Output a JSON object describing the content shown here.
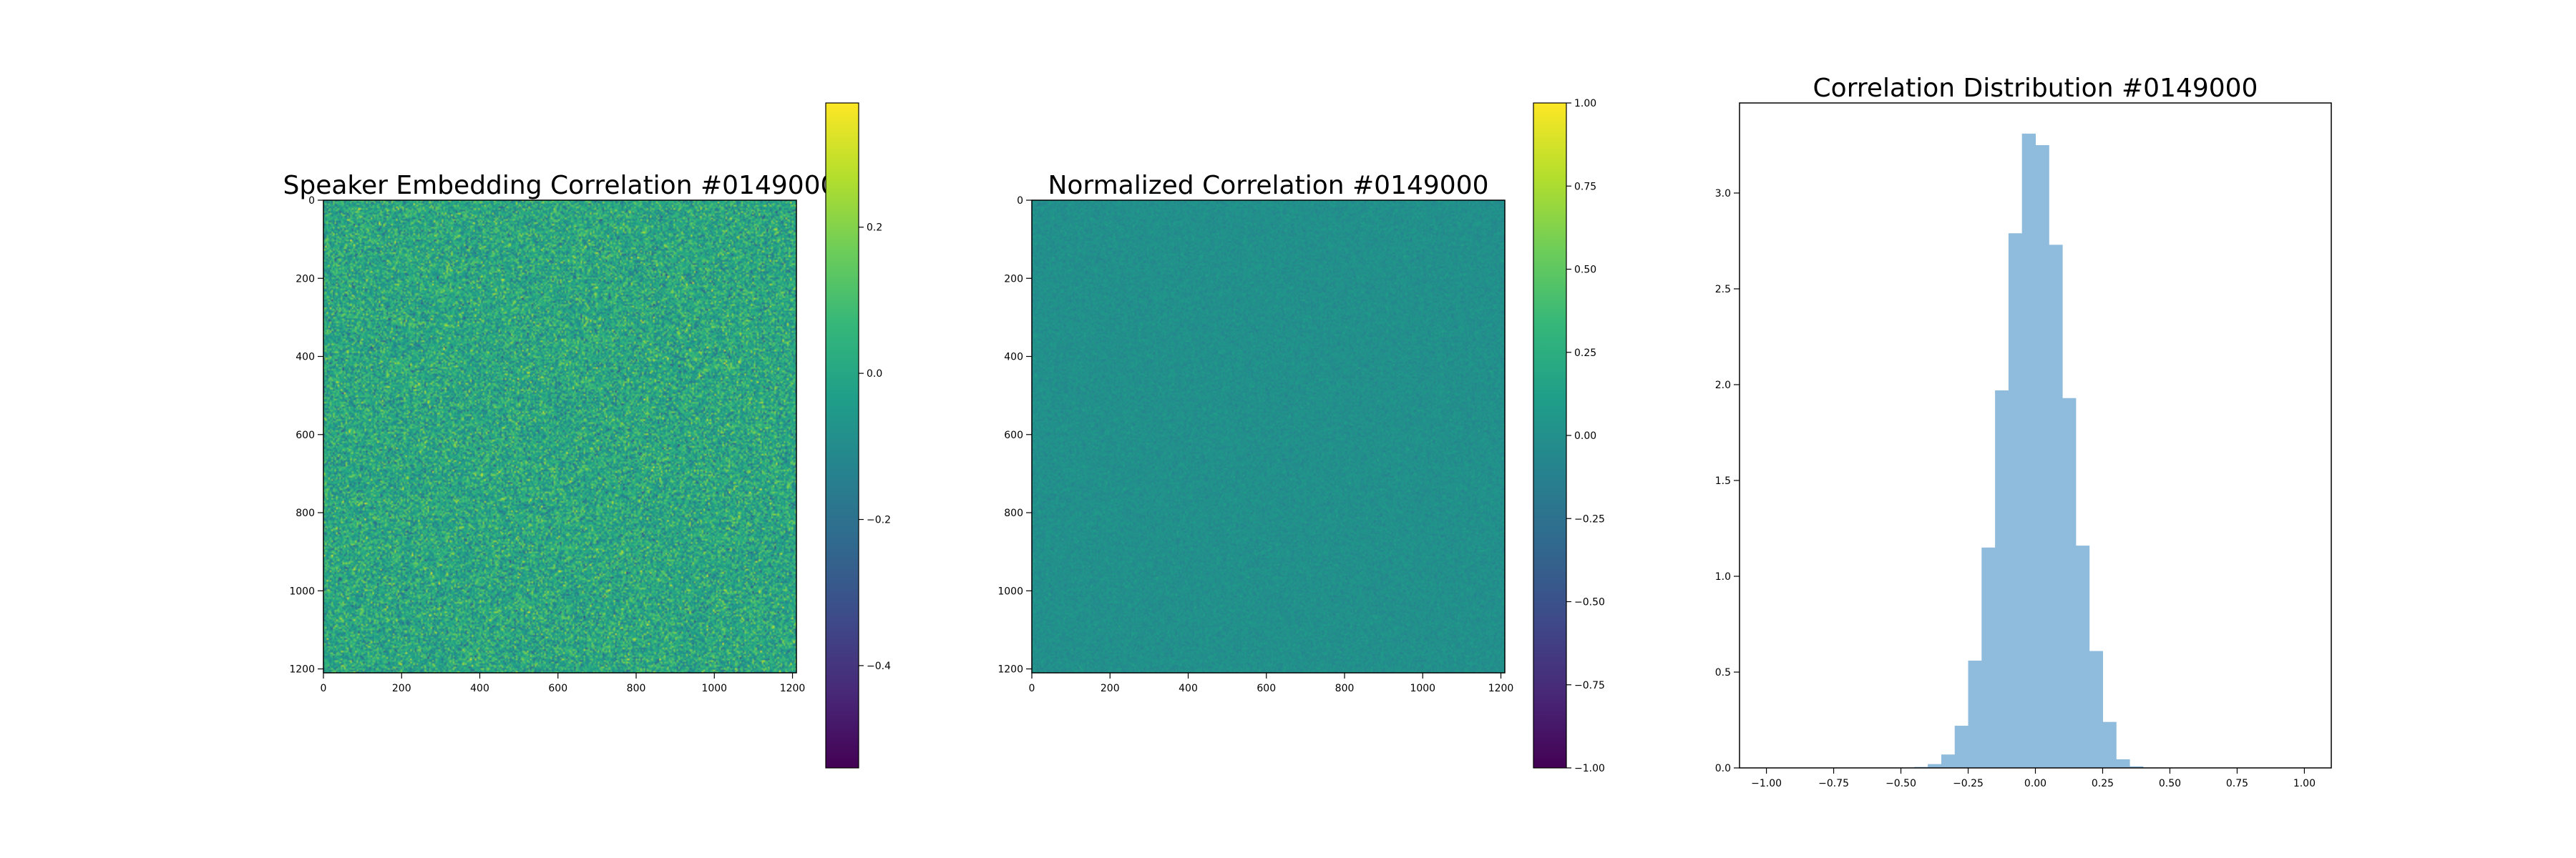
{
  "chart_data": [
    {
      "type": "heatmap",
      "title": "Speaker Embedding Correlation #0149000",
      "x_ticks": [
        0,
        200,
        400,
        600,
        800,
        1000,
        1200
      ],
      "y_ticks": [
        0,
        200,
        400,
        600,
        800,
        1000,
        1200
      ],
      "xlim": [
        0,
        1210
      ],
      "ylim": [
        0,
        1210
      ],
      "colormap": "viridis",
      "colorbar": {
        "range": [
          -0.54,
          0.37
        ],
        "ticks": [
          0.2,
          0.0,
          -0.2,
          -0.4
        ],
        "tick_labels": [
          "0.2",
          "0.0",
          "−0.2",
          "−0.4"
        ]
      },
      "value_distribution": {
        "center": 0.0,
        "spread": 0.1
      }
    },
    {
      "type": "heatmap",
      "title": "Normalized Correlation #0149000",
      "x_ticks": [
        0,
        200,
        400,
        600,
        800,
        1000,
        1200
      ],
      "y_ticks": [
        0,
        200,
        400,
        600,
        800,
        1000,
        1200
      ],
      "xlim": [
        0,
        1210
      ],
      "ylim": [
        0,
        1210
      ],
      "colormap": "viridis",
      "colorbar": {
        "range": [
          -1.0,
          1.0
        ],
        "ticks": [
          1.0,
          0.75,
          0.5,
          0.25,
          0.0,
          -0.25,
          -0.5,
          -0.75,
          -1.0
        ],
        "tick_labels": [
          "1.00",
          "0.75",
          "0.50",
          "0.25",
          "0.00",
          "−0.25",
          "−0.50",
          "−0.75",
          "−1.00"
        ]
      },
      "value_distribution": {
        "center": 0.0,
        "spread": 0.05
      }
    },
    {
      "type": "bar",
      "title": "Correlation Distribution #0149000",
      "bin_edges": [
        -0.45,
        -0.4,
        -0.35,
        -0.3,
        -0.25,
        -0.2,
        -0.15,
        -0.1,
        -0.05,
        0.0,
        0.05,
        0.1,
        0.15,
        0.2,
        0.25,
        0.3,
        0.35,
        0.4,
        0.45
      ],
      "values": [
        0.005,
        0.02,
        0.07,
        0.22,
        0.56,
        1.15,
        1.97,
        2.79,
        3.31,
        3.25,
        2.73,
        1.93,
        1.16,
        0.61,
        0.24,
        0.045,
        0.008,
        0.002
      ],
      "xlim": [
        -1.1,
        1.1
      ],
      "ylim": [
        0,
        3.47
      ],
      "x_ticks": [
        -1.0,
        -0.75,
        -0.5,
        -0.25,
        0.0,
        0.25,
        0.5,
        0.75,
        1.0
      ],
      "x_tick_labels": [
        "−1.00",
        "−0.75",
        "−0.50",
        "−0.25",
        "0.00",
        "0.25",
        "0.50",
        "0.75",
        "1.00"
      ],
      "y_ticks": [
        0.0,
        0.5,
        1.0,
        1.5,
        2.0,
        2.5,
        3.0
      ],
      "y_tick_labels": [
        "0.0",
        "0.5",
        "1.0",
        "1.5",
        "2.0",
        "2.5",
        "3.0"
      ],
      "color": "#8fbbdc"
    }
  ]
}
